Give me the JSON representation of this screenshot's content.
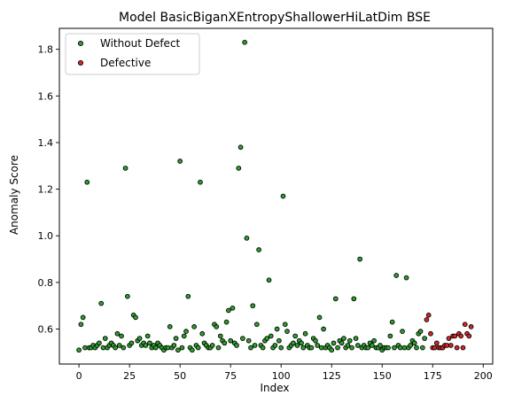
{
  "chart_data": {
    "type": "scatter",
    "title": "Model BasicBiganXEntropyShallowerHiLatDim BSE",
    "xlabel": "Index",
    "ylabel": "Anomaly Score",
    "xlim": [
      -9.7,
      204.7
    ],
    "ylim": [
      0.45,
      1.89
    ],
    "xticks": [
      0,
      25,
      50,
      75,
      100,
      125,
      150,
      175,
      200
    ],
    "yticks": [
      0.6,
      0.8,
      1.0,
      1.2,
      1.4,
      1.6,
      1.8
    ],
    "grid": false,
    "legend_position": "top-left",
    "series": [
      {
        "name": "Without Defect",
        "color": "#2ca02c",
        "edge_color": "#000000",
        "x": [
          0,
          1,
          2,
          3,
          4,
          5,
          6,
          7,
          8,
          9,
          10,
          11,
          12,
          13,
          14,
          15,
          16,
          17,
          18,
          19,
          20,
          21,
          22,
          23,
          24,
          25,
          26,
          27,
          28,
          29,
          30,
          31,
          32,
          33,
          34,
          35,
          36,
          37,
          38,
          39,
          40,
          41,
          42,
          43,
          44,
          45,
          46,
          47,
          48,
          49,
          50,
          51,
          52,
          53,
          54,
          55,
          56,
          57,
          58,
          59,
          60,
          61,
          62,
          63,
          64,
          65,
          66,
          67,
          68,
          69,
          70,
          71,
          72,
          73,
          74,
          75,
          76,
          77,
          78,
          79,
          80,
          81,
          82,
          83,
          84,
          85,
          86,
          87,
          88,
          89,
          90,
          91,
          92,
          93,
          94,
          95,
          96,
          97,
          98,
          99,
          100,
          101,
          102,
          103,
          104,
          105,
          106,
          107,
          108,
          109,
          110,
          111,
          112,
          113,
          114,
          115,
          116,
          117,
          118,
          119,
          120,
          121,
          122,
          123,
          124,
          125,
          126,
          127,
          128,
          129,
          130,
          131,
          132,
          133,
          134,
          135,
          136,
          137,
          138,
          139,
          140,
          141,
          142,
          143,
          144,
          145,
          146,
          147,
          148,
          149,
          150,
          151,
          152,
          153,
          154,
          155,
          156,
          157,
          158,
          159,
          160,
          161,
          162,
          163,
          164,
          165,
          166,
          167,
          168,
          169,
          170,
          171
        ],
        "y": [
          0.51,
          0.62,
          0.65,
          0.52,
          1.23,
          0.52,
          0.52,
          0.53,
          0.52,
          0.53,
          0.54,
          0.71,
          0.52,
          0.56,
          0.52,
          0.53,
          0.54,
          0.53,
          0.52,
          0.58,
          0.53,
          0.57,
          0.52,
          1.29,
          0.74,
          0.53,
          0.54,
          0.66,
          0.65,
          0.55,
          0.56,
          0.53,
          0.54,
          0.53,
          0.57,
          0.54,
          0.52,
          0.53,
          0.52,
          0.54,
          0.53,
          0.52,
          0.51,
          0.52,
          0.52,
          0.61,
          0.52,
          0.53,
          0.56,
          0.51,
          1.32,
          0.52,
          0.57,
          0.59,
          0.74,
          0.52,
          0.51,
          0.61,
          0.53,
          0.52,
          1.23,
          0.58,
          0.54,
          0.53,
          0.52,
          0.52,
          0.53,
          0.62,
          0.61,
          0.52,
          0.57,
          0.55,
          0.54,
          0.63,
          0.68,
          0.55,
          0.69,
          0.54,
          0.53,
          1.29,
          1.38,
          0.56,
          1.83,
          0.99,
          0.55,
          0.52,
          0.7,
          0.53,
          0.62,
          0.94,
          0.53,
          0.52,
          0.55,
          0.56,
          0.81,
          0.57,
          0.52,
          0.53,
          0.6,
          0.55,
          0.52,
          1.17,
          0.62,
          0.59,
          0.52,
          0.53,
          0.54,
          0.57,
          0.53,
          0.55,
          0.54,
          0.52,
          0.58,
          0.53,
          0.52,
          0.52,
          0.56,
          0.55,
          0.53,
          0.65,
          0.52,
          0.6,
          0.52,
          0.53,
          0.52,
          0.51,
          0.54,
          0.73,
          0.52,
          0.55,
          0.54,
          0.56,
          0.52,
          0.53,
          0.55,
          0.52,
          0.73,
          0.56,
          0.53,
          0.9,
          0.52,
          0.53,
          0.52,
          0.52,
          0.54,
          0.53,
          0.55,
          0.52,
          0.52,
          0.53,
          0.51,
          0.52,
          0.52,
          0.52,
          0.57,
          0.63,
          0.52,
          0.83,
          0.53,
          0.52,
          0.59,
          0.52,
          0.82,
          0.52,
          0.53,
          0.55,
          0.54,
          0.52,
          0.58,
          0.59,
          0.52,
          0.56
        ]
      },
      {
        "name": "Defective",
        "color": "#d62728",
        "edge_color": "#000000",
        "x": [
          172,
          173,
          174,
          175,
          176,
          177,
          178,
          179,
          180,
          181,
          182,
          183,
          184,
          185,
          186,
          187,
          188,
          189,
          190,
          191,
          192,
          193,
          194
        ],
        "y": [
          0.64,
          0.66,
          0.58,
          0.52,
          0.52,
          0.54,
          0.52,
          0.52,
          0.52,
          0.53,
          0.53,
          0.56,
          0.53,
          0.57,
          0.57,
          0.52,
          0.58,
          0.57,
          0.52,
          0.62,
          0.58,
          0.57,
          0.61
        ]
      }
    ]
  }
}
